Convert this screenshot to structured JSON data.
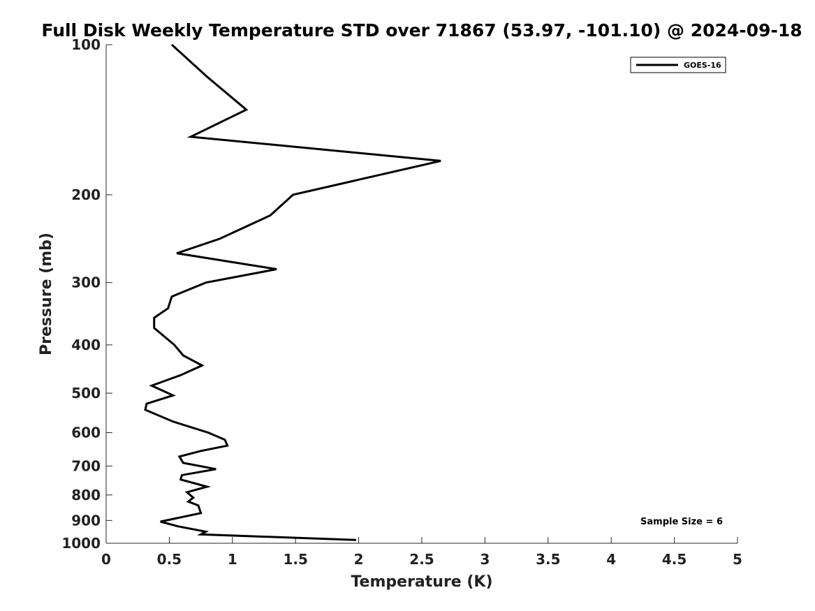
{
  "chart_data": {
    "type": "line",
    "title": "Full Disk Weekly Temperature STD over 71867 (53.97, -101.10) @ 2024-09-18",
    "xlabel": "Temperature (K)",
    "ylabel": "Pressure (mb)",
    "xlim": [
      0,
      5
    ],
    "ylim": [
      100,
      1000
    ],
    "y_scale": "log",
    "y_reversed": true,
    "x_ticks": [
      "0",
      "0.5",
      "1",
      "1.5",
      "2",
      "2.5",
      "3",
      "3.5",
      "4",
      "4.5",
      "5"
    ],
    "y_ticks": [
      "100",
      "200",
      "300",
      "400",
      "500",
      "600",
      "700",
      "800",
      "900",
      "1000"
    ],
    "grid": false,
    "legend": {
      "placement": "top-right",
      "entries": [
        "GOES-16"
      ]
    },
    "annotation": "Sample Size = 6",
    "series": [
      {
        "name": "GOES-16",
        "color": "#000000",
        "points": [
          [
            0.52,
            100
          ],
          [
            0.8,
            116
          ],
          [
            1.11,
            135
          ],
          [
            0.67,
            153
          ],
          [
            2.65,
            171
          ],
          [
            1.48,
            200
          ],
          [
            1.3,
            220
          ],
          [
            0.9,
            245
          ],
          [
            0.56,
            262
          ],
          [
            1.35,
            282
          ],
          [
            0.79,
            300
          ],
          [
            0.52,
            320
          ],
          [
            0.49,
            338
          ],
          [
            0.38,
            353
          ],
          [
            0.38,
            370
          ],
          [
            0.54,
            400
          ],
          [
            0.61,
            420
          ],
          [
            0.76,
            440
          ],
          [
            0.59,
            460
          ],
          [
            0.36,
            483
          ],
          [
            0.53,
            505
          ],
          [
            0.32,
            525
          ],
          [
            0.31,
            540
          ],
          [
            0.53,
            570
          ],
          [
            0.81,
            600
          ],
          [
            0.94,
            620
          ],
          [
            0.96,
            637
          ],
          [
            0.75,
            653
          ],
          [
            0.58,
            670
          ],
          [
            0.61,
            690
          ],
          [
            0.87,
            710
          ],
          [
            0.6,
            730
          ],
          [
            0.59,
            745
          ],
          [
            0.8,
            770
          ],
          [
            0.64,
            790
          ],
          [
            0.69,
            810
          ],
          [
            0.65,
            825
          ],
          [
            0.73,
            840
          ],
          [
            0.75,
            870
          ],
          [
            0.43,
            905
          ],
          [
            0.57,
            925
          ],
          [
            0.79,
            948
          ],
          [
            0.75,
            960
          ],
          [
            1.98,
            985
          ]
        ]
      }
    ]
  }
}
